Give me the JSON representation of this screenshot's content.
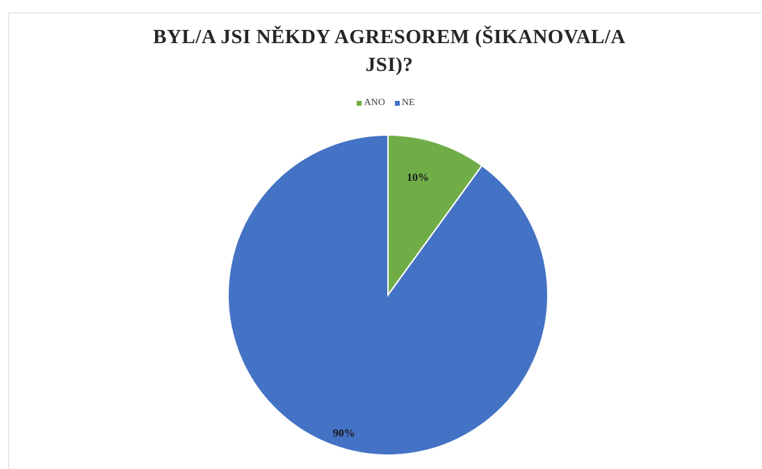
{
  "chart_data": {
    "type": "pie",
    "title_lines": [
      "BYL/A JSI NĚKDY AGRESOREM (ŠIKANOVAL/A",
      "JSI)?"
    ],
    "legend_position": "top",
    "slices": [
      {
        "name": "ANO",
        "value": 10,
        "label": "10%",
        "color": "#70ad47"
      },
      {
        "name": "NE",
        "value": 90,
        "label": "90%",
        "color": "#4472c4"
      }
    ]
  }
}
